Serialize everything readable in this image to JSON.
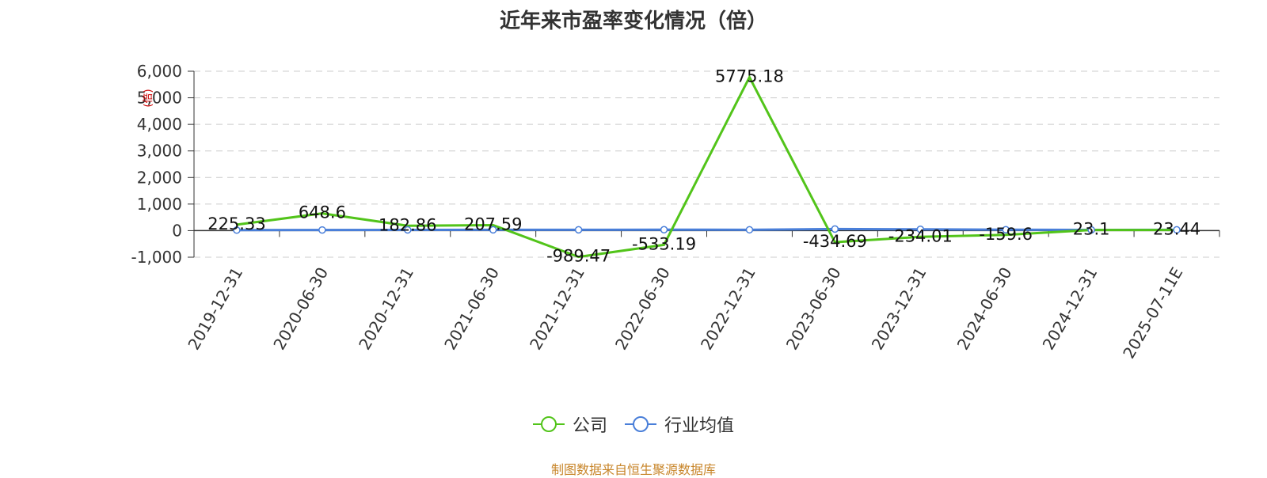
{
  "title": "近年来市盈率变化情况（倍）",
  "legend": {
    "company": "公司",
    "industry": "行业均值"
  },
  "source_note": "制图数据来自恒生聚源数据库",
  "colors": {
    "company": "#52c41a",
    "industry": "#4a7fd9",
    "source": "#c8862b"
  },
  "chart_data": {
    "type": "line",
    "title": "近年来市盈率变化情况（倍）",
    "categories": [
      "2019-12-31",
      "2020-06-30",
      "2020-12-31",
      "2021-06-30",
      "2021-12-31",
      "2022-06-30",
      "2022-12-31",
      "2023-06-30",
      "2023-12-31",
      "2024-06-30",
      "2024-12-31",
      "2025-07-11E"
    ],
    "ylim": [
      -1000,
      6000
    ],
    "yticks": [
      -1000,
      0,
      1000,
      2000,
      3000,
      4000,
      5000,
      6000
    ],
    "ytick_labels": [
      "-1,000",
      "0",
      "1,000",
      "2,000",
      "3,000",
      "4,000",
      "5,000",
      "6,000"
    ],
    "ylabel": "倍",
    "grid": true,
    "legend_position": "bottom",
    "series": [
      {
        "name": "公司",
        "values": [
          225.33,
          648.6,
          182.86,
          207.59,
          -989.47,
          -533.19,
          5775.18,
          -434.69,
          -234.01,
          -159.6,
          23.1,
          23.44
        ],
        "data_labels": [
          "225.33",
          "648.6",
          "182.86",
          "207.59",
          "-989.47",
          "-533.19",
          "5775.18",
          "-434.69",
          "-234.01",
          "-159.6",
          "23.1",
          "23.44"
        ]
      },
      {
        "name": "行业均值",
        "values": [
          20,
          25,
          28,
          30,
          32,
          35,
          33,
          60,
          50,
          35,
          28,
          30
        ]
      }
    ]
  }
}
